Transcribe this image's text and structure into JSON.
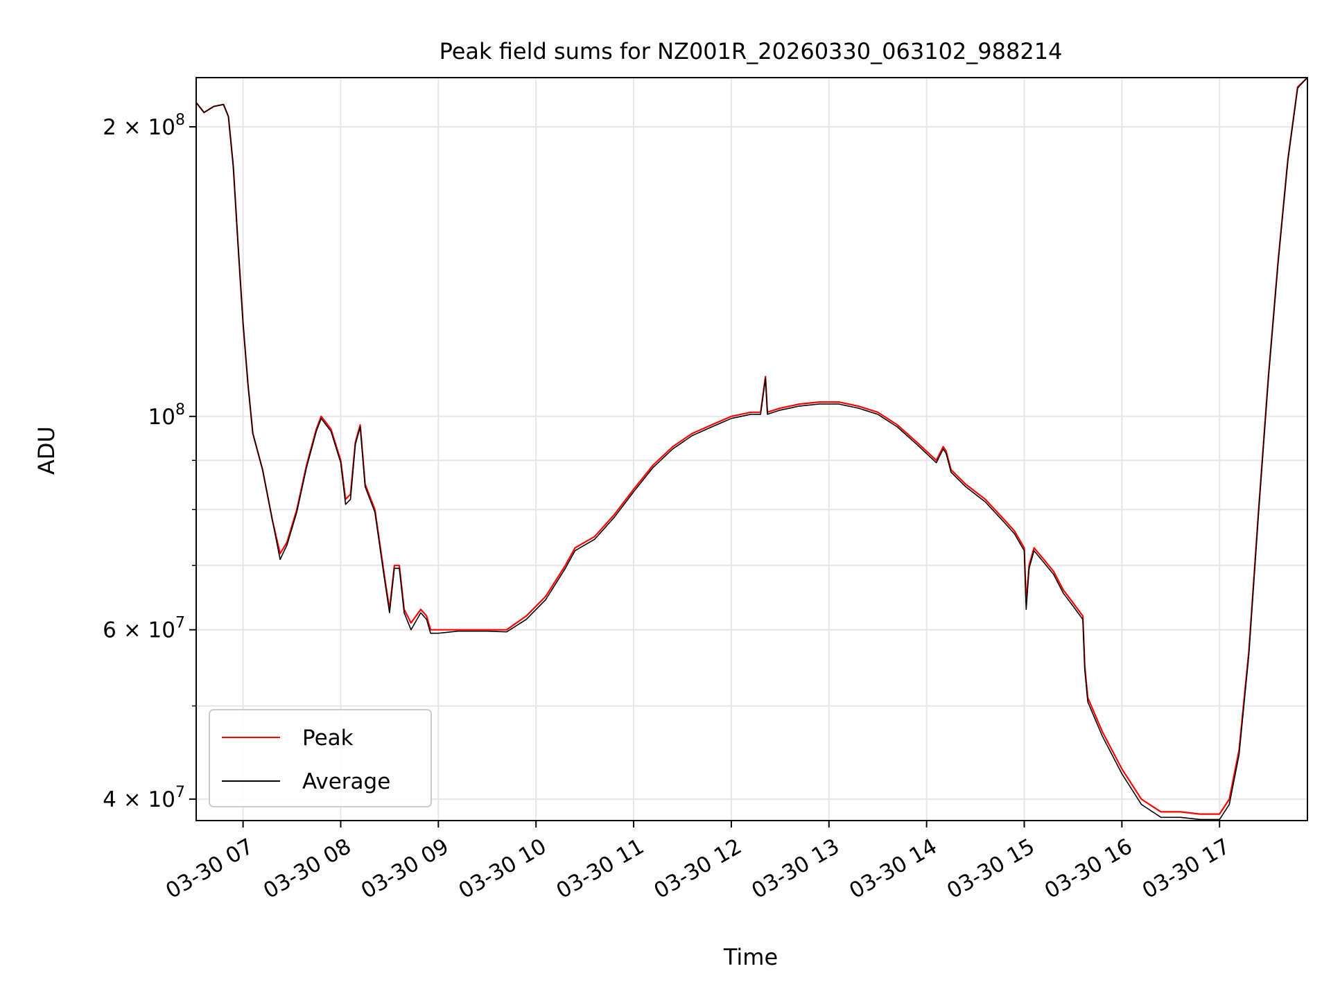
{
  "chart_data": {
    "type": "line",
    "title": "Peak field sums for NZ001R_20260330_063102_988214",
    "xlabel": "Time",
    "ylabel": "ADU",
    "yscale": "log",
    "grid": true,
    "legend_position": "lower-left",
    "x_unit": "hour of day 2026-03-30",
    "xlim": [
      6.52,
      17.9
    ],
    "ylim": [
      38000000,
      225000000
    ],
    "x_ticks": [
      {
        "value": 7,
        "label": "03-30 07"
      },
      {
        "value": 8,
        "label": "03-30 08"
      },
      {
        "value": 9,
        "label": "03-30 09"
      },
      {
        "value": 10,
        "label": "03-30 10"
      },
      {
        "value": 11,
        "label": "03-30 11"
      },
      {
        "value": 12,
        "label": "03-30 12"
      },
      {
        "value": 13,
        "label": "03-30 13"
      },
      {
        "value": 14,
        "label": "03-30 14"
      },
      {
        "value": 15,
        "label": "03-30 15"
      },
      {
        "value": 16,
        "label": "03-30 16"
      },
      {
        "value": 17,
        "label": "03-30 17"
      }
    ],
    "y_major_ticks": [
      {
        "value": 40000000,
        "label": "4 × 10",
        "exp": "7"
      },
      {
        "value": 60000000,
        "label": "6 × 10",
        "exp": "7"
      },
      {
        "value": 100000000,
        "label": "10",
        "exp": "8"
      },
      {
        "value": 200000000,
        "label": "2 × 10",
        "exp": "8"
      }
    ],
    "y_minor_ticks": [
      50000000,
      70000000,
      80000000,
      90000000
    ],
    "series": [
      {
        "name": "Peak",
        "color": "#ff0000",
        "points": [
          [
            6.52,
            212000000
          ],
          [
            6.6,
            207000000
          ],
          [
            6.7,
            210000000
          ],
          [
            6.8,
            211000000
          ],
          [
            6.85,
            205000000
          ],
          [
            6.9,
            182000000
          ],
          [
            6.95,
            150000000
          ],
          [
            7.0,
            125000000
          ],
          [
            7.05,
            108000000
          ],
          [
            7.1,
            96000000
          ],
          [
            7.2,
            88000000
          ],
          [
            7.3,
            78000000
          ],
          [
            7.38,
            72000000
          ],
          [
            7.45,
            74000000
          ],
          [
            7.55,
            80000000
          ],
          [
            7.65,
            89000000
          ],
          [
            7.75,
            97000000
          ],
          [
            7.8,
            100000000
          ],
          [
            7.9,
            97000000
          ],
          [
            8.0,
            90000000
          ],
          [
            8.05,
            82000000
          ],
          [
            8.1,
            83000000
          ],
          [
            8.15,
            94000000
          ],
          [
            8.2,
            98000000
          ],
          [
            8.25,
            85000000
          ],
          [
            8.35,
            80000000
          ],
          [
            8.45,
            68000000
          ],
          [
            8.5,
            63000000
          ],
          [
            8.55,
            70000000
          ],
          [
            8.6,
            70000000
          ],
          [
            8.65,
            63000000
          ],
          [
            8.72,
            61000000
          ],
          [
            8.82,
            63000000
          ],
          [
            8.88,
            62000000
          ],
          [
            8.92,
            60000000
          ],
          [
            9.0,
            60000000
          ],
          [
            9.2,
            60000000
          ],
          [
            9.5,
            60000000
          ],
          [
            9.7,
            60000000
          ],
          [
            9.9,
            62000000
          ],
          [
            10.1,
            65000000
          ],
          [
            10.3,
            70000000
          ],
          [
            10.4,
            73000000
          ],
          [
            10.6,
            75000000
          ],
          [
            10.8,
            79000000
          ],
          [
            11.0,
            84000000
          ],
          [
            11.2,
            89000000
          ],
          [
            11.4,
            93000000
          ],
          [
            11.6,
            96000000
          ],
          [
            11.8,
            98000000
          ],
          [
            12.0,
            100000000
          ],
          [
            12.2,
            101000000
          ],
          [
            12.3,
            101000000
          ],
          [
            12.35,
            110000000
          ],
          [
            12.37,
            101000000
          ],
          [
            12.5,
            102000000
          ],
          [
            12.7,
            103000000
          ],
          [
            12.9,
            103500000
          ],
          [
            13.1,
            103500000
          ],
          [
            13.3,
            102500000
          ],
          [
            13.5,
            101000000
          ],
          [
            13.7,
            98000000
          ],
          [
            13.9,
            94000000
          ],
          [
            14.1,
            90000000
          ],
          [
            14.17,
            93000000
          ],
          [
            14.2,
            92000000
          ],
          [
            14.25,
            88000000
          ],
          [
            14.4,
            85000000
          ],
          [
            14.6,
            82000000
          ],
          [
            14.8,
            78000000
          ],
          [
            14.9,
            76000000
          ],
          [
            15.0,
            73000000
          ],
          [
            15.02,
            64000000
          ],
          [
            15.05,
            70000000
          ],
          [
            15.1,
            73000000
          ],
          [
            15.2,
            71000000
          ],
          [
            15.3,
            69000000
          ],
          [
            15.4,
            66000000
          ],
          [
            15.5,
            64000000
          ],
          [
            15.6,
            62000000
          ],
          [
            15.62,
            55000000
          ],
          [
            15.65,
            51000000
          ],
          [
            15.8,
            47000000
          ],
          [
            16.0,
            43000000
          ],
          [
            16.2,
            40000000
          ],
          [
            16.4,
            38800000
          ],
          [
            16.6,
            38800000
          ],
          [
            16.8,
            38600000
          ],
          [
            17.0,
            38600000
          ],
          [
            17.1,
            40000000
          ],
          [
            17.2,
            45000000
          ],
          [
            17.3,
            57000000
          ],
          [
            17.4,
            80000000
          ],
          [
            17.5,
            110000000
          ],
          [
            17.6,
            145000000
          ],
          [
            17.7,
            185000000
          ],
          [
            17.8,
            220000000
          ],
          [
            17.9,
            225000000
          ]
        ]
      },
      {
        "name": "Average",
        "color": "#000000",
        "points": [
          [
            6.52,
            212000000
          ],
          [
            6.6,
            207000000
          ],
          [
            6.7,
            210000000
          ],
          [
            6.8,
            211000000
          ],
          [
            6.85,
            205000000
          ],
          [
            6.9,
            182000000
          ],
          [
            6.95,
            150000000
          ],
          [
            7.0,
            125000000
          ],
          [
            7.05,
            108000000
          ],
          [
            7.1,
            96000000
          ],
          [
            7.2,
            88000000
          ],
          [
            7.3,
            78000000
          ],
          [
            7.38,
            71000000
          ],
          [
            7.45,
            73500000
          ],
          [
            7.55,
            79500000
          ],
          [
            7.65,
            88500000
          ],
          [
            7.75,
            96500000
          ],
          [
            7.8,
            99500000
          ],
          [
            7.9,
            96500000
          ],
          [
            8.0,
            89500000
          ],
          [
            8.05,
            81000000
          ],
          [
            8.1,
            82000000
          ],
          [
            8.15,
            93500000
          ],
          [
            8.2,
            97500000
          ],
          [
            8.25,
            84500000
          ],
          [
            8.35,
            79500000
          ],
          [
            8.45,
            67500000
          ],
          [
            8.5,
            62500000
          ],
          [
            8.55,
            69500000
          ],
          [
            8.6,
            69500000
          ],
          [
            8.65,
            62500000
          ],
          [
            8.72,
            60000000
          ],
          [
            8.82,
            62500000
          ],
          [
            8.88,
            61500000
          ],
          [
            8.92,
            59500000
          ],
          [
            9.0,
            59500000
          ],
          [
            9.2,
            59800000
          ],
          [
            9.5,
            59800000
          ],
          [
            9.7,
            59700000
          ],
          [
            9.9,
            61500000
          ],
          [
            10.1,
            64500000
          ],
          [
            10.3,
            69500000
          ],
          [
            10.4,
            72500000
          ],
          [
            10.6,
            74500000
          ],
          [
            10.8,
            78500000
          ],
          [
            11.0,
            83500000
          ],
          [
            11.2,
            88500000
          ],
          [
            11.4,
            92500000
          ],
          [
            11.6,
            95500000
          ],
          [
            11.8,
            97500000
          ],
          [
            12.0,
            99500000
          ],
          [
            12.2,
            100500000
          ],
          [
            12.3,
            100500000
          ],
          [
            12.35,
            109500000
          ],
          [
            12.37,
            100500000
          ],
          [
            12.5,
            101500000
          ],
          [
            12.7,
            102500000
          ],
          [
            12.9,
            103000000
          ],
          [
            13.1,
            103000000
          ],
          [
            13.3,
            102000000
          ],
          [
            13.5,
            100500000
          ],
          [
            13.7,
            97500000
          ],
          [
            13.9,
            93500000
          ],
          [
            14.1,
            89500000
          ],
          [
            14.17,
            92500000
          ],
          [
            14.2,
            91500000
          ],
          [
            14.25,
            87500000
          ],
          [
            14.4,
            84500000
          ],
          [
            14.6,
            81500000
          ],
          [
            14.8,
            77500000
          ],
          [
            14.9,
            75500000
          ],
          [
            15.0,
            72500000
          ],
          [
            15.02,
            63000000
          ],
          [
            15.05,
            69500000
          ],
          [
            15.1,
            72500000
          ],
          [
            15.2,
            70500000
          ],
          [
            15.3,
            68500000
          ],
          [
            15.4,
            65500000
          ],
          [
            15.5,
            63500000
          ],
          [
            15.6,
            61500000
          ],
          [
            15.62,
            54500000
          ],
          [
            15.65,
            50500000
          ],
          [
            15.8,
            46500000
          ],
          [
            16.0,
            42500000
          ],
          [
            16.2,
            39500000
          ],
          [
            16.4,
            38300000
          ],
          [
            16.6,
            38300000
          ],
          [
            16.8,
            38100000
          ],
          [
            17.0,
            38100000
          ],
          [
            17.1,
            39500000
          ],
          [
            17.2,
            44500000
          ],
          [
            17.3,
            56500000
          ],
          [
            17.4,
            79500000
          ],
          [
            17.5,
            109500000
          ],
          [
            17.6,
            144500000
          ],
          [
            17.7,
            184500000
          ],
          [
            17.8,
            219500000
          ],
          [
            17.9,
            225000000
          ]
        ]
      }
    ]
  }
}
